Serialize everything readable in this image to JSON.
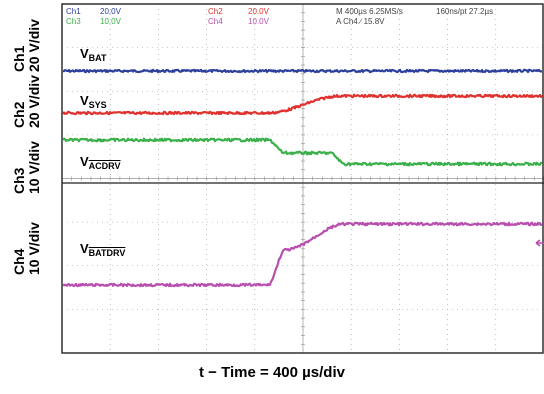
{
  "panel": {
    "ch1_label": "Ch1",
    "ch1_scale": "20 V/div",
    "ch2_label": "Ch2",
    "ch2_scale": "20 V/div",
    "ch3_label": "Ch3",
    "ch3_scale": "10 V/div",
    "ch4_label": "Ch4",
    "ch4_scale": "10 V/div"
  },
  "header": {
    "ch1": "Ch1",
    "ch1_val": "20.0V",
    "ch2": "Ch2",
    "ch2_val": "20.0V",
    "ch3": "Ch3",
    "ch3_val": "10.0V",
    "ch4": "Ch4",
    "ch4_val": "10.0V",
    "timebase": "M 400µs 6.25MS/s",
    "record": "160ns/pt 27.2µs",
    "trigger": "A  Ch4  ∕  15.8V"
  },
  "signals": {
    "vbat_main": "V",
    "vbat_sub": "BAT",
    "vsys_main": "V",
    "vsys_sub": "SYS",
    "vacdrv_main": "V",
    "vacdrv_sub": "ACDRV",
    "vbatdrv_main": "V",
    "vbatdrv_sub": "BATDRV"
  },
  "xaxis_label": "t − Time = 400 µs/div",
  "colors": {
    "ch1": "#2c3f9c",
    "ch2": "#e0312e",
    "ch3": "#3ab04a",
    "ch4": "#b84fae",
    "grid": "#9a9a9a",
    "frame": "#222222"
  }
}
